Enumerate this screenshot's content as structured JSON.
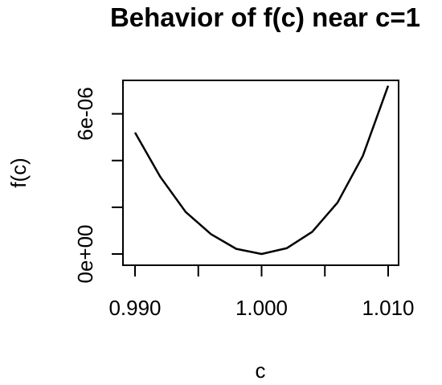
{
  "chart_data": {
    "type": "line",
    "title": "Behavior of f(c) near c=1",
    "xlabel": "c",
    "ylabel": "f(c)",
    "xlim": [
      0.99,
      1.01
    ],
    "ylim": [
      0,
      7.5e-06
    ],
    "x_ticks": [
      {
        "value": 0.99,
        "label": "0.990"
      },
      {
        "value": 0.995,
        "label": ""
      },
      {
        "value": 1.0,
        "label": "1.000"
      },
      {
        "value": 1.005,
        "label": ""
      },
      {
        "value": 1.01,
        "label": "1.010"
      }
    ],
    "y_ticks": [
      {
        "value": 0,
        "label": "0e+00"
      },
      {
        "value": 2e-06,
        "label": ""
      },
      {
        "value": 4e-06,
        "label": ""
      },
      {
        "value": 6e-06,
        "label": "6e-06"
      }
    ],
    "series": [
      {
        "x": [
          0.99,
          0.992,
          0.994,
          0.996,
          0.998,
          1.0,
          1.002,
          1.004,
          1.006,
          1.008,
          1.01
        ],
        "y": [
          5.2e-06,
          3.3e-06,
          1.8e-06,
          8.5e-07,
          2.2e-07,
          0.0,
          2.5e-07,
          9.5e-07,
          2.2e-06,
          4.2e-06,
          7.2e-06
        ]
      }
    ],
    "grid": false,
    "legend": "none",
    "colors": {
      "line": "#000000",
      "axis": "#000000",
      "background": "#ffffff"
    }
  }
}
